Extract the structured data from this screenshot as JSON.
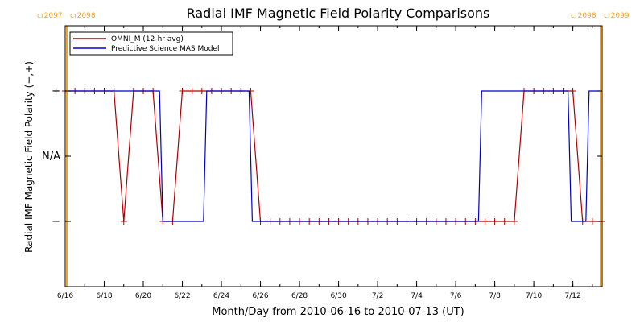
{
  "chart_data": {
    "type": "line",
    "title": "Radial IMF Magnetic Field Polarity Comparisons",
    "xlabel": "Month/Day from 2010-06-16 to 2010-07-13 (UT)",
    "ylabel": "Radial IMF Magnetic Field Polarity (−,+)",
    "xlim": [
      "2010-06-16",
      "2010-07-13T12:00"
    ],
    "ylim": [
      -2,
      2
    ],
    "x_tick_labels": [
      "6/16",
      "6/18",
      "6/20",
      "6/22",
      "6/24",
      "6/26",
      "6/28",
      "6/30",
      "7/2",
      "7/4",
      "7/6",
      "7/8",
      "7/10",
      "7/12"
    ],
    "y_ticks": [
      {
        "value": 1,
        "label": "+"
      },
      {
        "value": 0,
        "label": "N/A"
      },
      {
        "value": -1,
        "label": "−"
      }
    ],
    "legend": {
      "position": "top-left"
    },
    "carrington_markers": [
      {
        "date": "2010-06-16T02:00",
        "left_label": "cr2097",
        "right_label": "cr2098",
        "color": "#ff9f1c",
        "label_side": "left"
      },
      {
        "date": "2010-07-13T10:00",
        "left_label": "cr2098",
        "right_label": "cr2099",
        "color": "#ff9f1c",
        "label_side": "right"
      }
    ],
    "series": [
      {
        "name": "OMNI_M (12-hr avg)",
        "color": "#b00000",
        "marker": "plus",
        "x": [
          "2010-06-16T00:00",
          "2010-06-16T12:00",
          "2010-06-17T00:00",
          "2010-06-17T12:00",
          "2010-06-18T00:00",
          "2010-06-18T12:00",
          "2010-06-19T00:00",
          "2010-06-19T12:00",
          "2010-06-20T00:00",
          "2010-06-20T12:00",
          "2010-06-21T00:00",
          "2010-06-21T12:00",
          "2010-06-22T00:00",
          "2010-06-22T12:00",
          "2010-06-23T00:00",
          "2010-06-23T12:00",
          "2010-06-24T00:00",
          "2010-06-24T12:00",
          "2010-06-25T00:00",
          "2010-06-25T12:00",
          "2010-06-26T00:00",
          "2010-06-26T12:00",
          "2010-06-27T00:00",
          "2010-06-27T12:00",
          "2010-06-28T00:00",
          "2010-06-28T12:00",
          "2010-06-29T00:00",
          "2010-06-29T12:00",
          "2010-06-30T00:00",
          "2010-06-30T12:00",
          "2010-07-01T00:00",
          "2010-07-01T12:00",
          "2010-07-02T00:00",
          "2010-07-02T12:00",
          "2010-07-03T00:00",
          "2010-07-03T12:00",
          "2010-07-04T00:00",
          "2010-07-04T12:00",
          "2010-07-05T00:00",
          "2010-07-05T12:00",
          "2010-07-06T00:00",
          "2010-07-06T12:00",
          "2010-07-07T00:00",
          "2010-07-07T12:00",
          "2010-07-08T00:00",
          "2010-07-08T12:00",
          "2010-07-09T00:00",
          "2010-07-09T12:00",
          "2010-07-10T00:00",
          "2010-07-10T12:00",
          "2010-07-11T00:00",
          "2010-07-11T12:00",
          "2010-07-12T00:00",
          "2010-07-12T12:00",
          "2010-07-13T00:00",
          "2010-07-13T12:00"
        ],
        "y": [
          1,
          1,
          1,
          1,
          1,
          1,
          -1,
          1,
          1,
          1,
          -1,
          -1,
          1,
          1,
          1,
          1,
          1,
          1,
          1,
          1,
          -1,
          -1,
          -1,
          -1,
          -1,
          -1,
          -1,
          -1,
          -1,
          -1,
          -1,
          -1,
          -1,
          -1,
          -1,
          -1,
          -1,
          -1,
          -1,
          -1,
          -1,
          -1,
          -1,
          -1,
          -1,
          -1,
          -1,
          1,
          1,
          1,
          1,
          1,
          1,
          -1,
          -1,
          -1
        ]
      },
      {
        "name": "Predictive Science MAS Model",
        "color": "#0000cc",
        "marker": "none",
        "x": [
          "2010-06-16T00:00",
          "2010-06-20T20:00",
          "2010-06-21T00:00",
          "2010-06-23T02:00",
          "2010-06-23T06:00",
          "2010-06-25T10:00",
          "2010-06-25T14:00",
          "2010-07-07T04:00",
          "2010-07-07T08:00",
          "2010-07-10T20:00",
          "2010-07-11T00:00",
          "2010-07-11T18:00",
          "2010-07-11T22:00",
          "2010-07-12T16:00",
          "2010-07-12T20:00",
          "2010-07-13T12:00"
        ],
        "y": [
          1,
          1,
          -1,
          -1,
          1,
          1,
          -1,
          -1,
          1,
          1,
          1,
          1,
          -1,
          -1,
          1,
          1
        ]
      }
    ]
  }
}
